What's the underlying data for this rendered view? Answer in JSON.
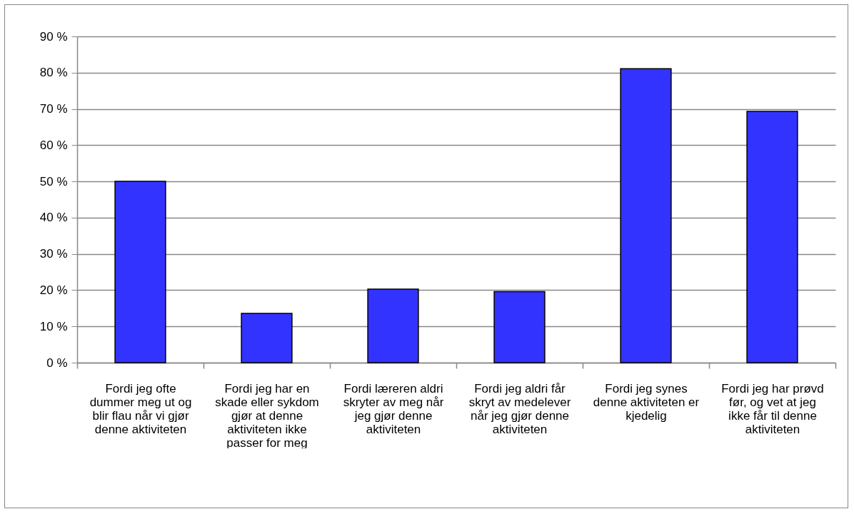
{
  "chart_data": {
    "type": "bar",
    "categories": [
      "Fordi jeg ofte dummer meg ut og blir flau når vi gjør denne aktiviteten",
      "Fordi jeg har en skade eller sykdom gjør at denne aktiviteten ikke passer for meg",
      "Fordi læreren aldri skryter av meg når jeg gjør denne aktiviteten",
      "Fordi jeg  aldri får skryt av medelever når jeg gjør denne aktiviteten",
      "Fordi jeg synes denne aktiviteten er kjedelig",
      "Fordi jeg har prøvd før, og vet at jeg ikke får til denne aktiviteten"
    ],
    "values": [
      50,
      13.6,
      20.3,
      19.6,
      81.1,
      69.3
    ],
    "color": "#3333ff",
    "ylim": [
      0,
      90
    ],
    "yticks": [
      {
        "value": 0,
        "label": "0 %"
      },
      {
        "value": 10,
        "label": "10 %"
      },
      {
        "value": 20,
        "label": "20 %"
      },
      {
        "value": 30,
        "label": "30 %"
      },
      {
        "value": 40,
        "label": "40 %"
      },
      {
        "value": 50,
        "label": "50 %"
      },
      {
        "value": 60,
        "label": "60 %"
      },
      {
        "value": 70,
        "label": "70 %"
      },
      {
        "value": 80,
        "label": "80 %"
      },
      {
        "value": 90,
        "label": "90 %"
      }
    ],
    "grid": "y"
  }
}
